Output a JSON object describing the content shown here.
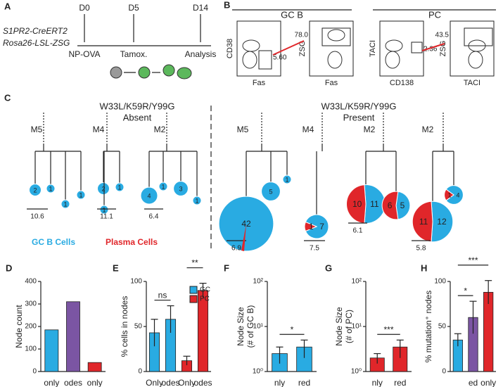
{
  "figure": {
    "panel_a": {
      "label": "A",
      "line1": "S1PR2-CreERT2",
      "line2": "Rosa26-LSL-ZSG",
      "timepoints": [
        "D0",
        "D5",
        "D14"
      ],
      "events": [
        "NP-OVA",
        "Tamox.",
        "Analysis"
      ]
    },
    "panel_b": {
      "label": "B",
      "groups": [
        "GC B",
        "PC"
      ],
      "plots": [
        {
          "y": "CD38",
          "x": "Fas",
          "gate": "5.60"
        },
        {
          "y": "ZSG",
          "x": "Fas",
          "gate": "78.0"
        },
        {
          "y": "TACI",
          "x": "CD138",
          "gate": "2.36"
        },
        {
          "y": "ZSG",
          "x": "TACI",
          "gate": "43.5"
        }
      ]
    },
    "panel_c": {
      "label": "C",
      "groups": [
        {
          "title": "W33L/K59R/Y99G",
          "subtitle": "Absent"
        },
        {
          "title": "W33L/K59R/Y99G",
          "subtitle": "Present"
        }
      ],
      "legend": [
        {
          "name": "GC B Cells",
          "color": "#29abe2"
        },
        {
          "name": "Plasma Cells",
          "color": "#e0262a"
        }
      ],
      "trees": [
        {
          "name": "M5",
          "scale": 10.6,
          "nodes": [
            {
              "gc": 2
            },
            {
              "gc": 1
            },
            {
              "gc": 1
            },
            {
              "gc": 1
            }
          ]
        },
        {
          "name": "M4",
          "scale": 11.1,
          "nodes": [
            {
              "gc": 2
            },
            {
              "gc": 1
            },
            {
              "gc": 1
            }
          ]
        },
        {
          "name": "M2",
          "scale": 6.4,
          "nodes": [
            {
              "gc": 4
            },
            {
              "gc": 1
            },
            {
              "gc": 3
            },
            {
              "gc": 1
            }
          ]
        },
        {
          "name": "M5",
          "scale": 6.9,
          "nodes": [
            {
              "gc": 42
            },
            {
              "gc": 5
            },
            {
              "gc": 1
            }
          ]
        },
        {
          "name": "M4",
          "scale": 7.5,
          "nodes": [
            {
              "gc": 7,
              "pc": 1
            }
          ]
        },
        {
          "name": "M2",
          "scale": 6.1,
          "nodes": [
            {
              "gc": 11,
              "pc": 10
            },
            {
              "gc": 5,
              "pc": 6
            }
          ]
        },
        {
          "name": "M2",
          "scale": 5.8,
          "nodes": [
            {
              "gc": 12,
              "pc": 11
            },
            {
              "gc": 4,
              "pc": 1
            }
          ]
        }
      ]
    }
  },
  "chart_data": [
    {
      "type": "bar",
      "label": "D",
      "y_label": "Node count",
      "categories": [
        "only",
        "odes",
        "only"
      ],
      "values": [
        185,
        310,
        40
      ],
      "colors": [
        "#29abe2",
        "#7b55a3",
        "#e0262a"
      ],
      "ylim": [
        0,
        400
      ],
      "yticks": [
        0,
        100,
        200,
        300,
        400
      ]
    },
    {
      "type": "bar",
      "label": "E",
      "y_label": "% cells in nodes",
      "categories": [
        "Only",
        "odes",
        "Only",
        "odes"
      ],
      "series": [
        {
          "name": "GC",
          "color": "#29abe2",
          "values": [
            43,
            58,
            null,
            null
          ],
          "errors": [
            15,
            15,
            null,
            null
          ]
        },
        {
          "name": "PC",
          "color": "#e0262a",
          "values": [
            null,
            null,
            12,
            90
          ],
          "errors": [
            null,
            null,
            5,
            8
          ]
        }
      ],
      "ylim": [
        0,
        100
      ],
      "yticks": [
        0,
        50,
        100
      ],
      "annotations": [
        "ns",
        "**"
      ]
    },
    {
      "type": "bar",
      "label": "F",
      "y_label": [
        "Node Size",
        "(# of GC B)"
      ],
      "categories": [
        "nly",
        "red"
      ],
      "values": [
        2.5,
        3.5
      ],
      "errors": [
        1,
        1.5
      ],
      "color": "#29abe2",
      "log_y": true,
      "ylim": [
        1,
        100
      ],
      "yticks": [
        {
          "value": 1,
          "label": "10⁰"
        },
        {
          "value": 10,
          "label": "10¹"
        },
        {
          "value": 100,
          "label": "10²"
        }
      ],
      "annotations": [
        "*"
      ]
    },
    {
      "type": "bar",
      "label": "G",
      "y_label": [
        "Node Size",
        "(# of PC)"
      ],
      "categories": [
        "nly",
        "red"
      ],
      "values": [
        2,
        3.5
      ],
      "errors": [
        0.5,
        1.5
      ],
      "color": "#e0262a",
      "log_y": true,
      "ylim": [
        1,
        100
      ],
      "yticks": [
        {
          "value": 1,
          "label": "10⁰"
        },
        {
          "value": 10,
          "label": "10¹"
        },
        {
          "value": 100,
          "label": "10²"
        }
      ],
      "annotations": [
        "***"
      ]
    },
    {
      "type": "bar",
      "label": "H",
      "y_label": "% mutation⁺ nodes",
      "categories": [
        null,
        "ed",
        "only"
      ],
      "values": [
        35,
        60,
        88
      ],
      "errors": [
        7,
        18,
        13
      ],
      "colors": [
        "#29abe2",
        "#7b55a3",
        "#e0262a"
      ],
      "ylim": [
        0,
        100
      ],
      "yticks": [
        0,
        50,
        100
      ],
      "annotations": [
        "*",
        "***"
      ]
    }
  ]
}
